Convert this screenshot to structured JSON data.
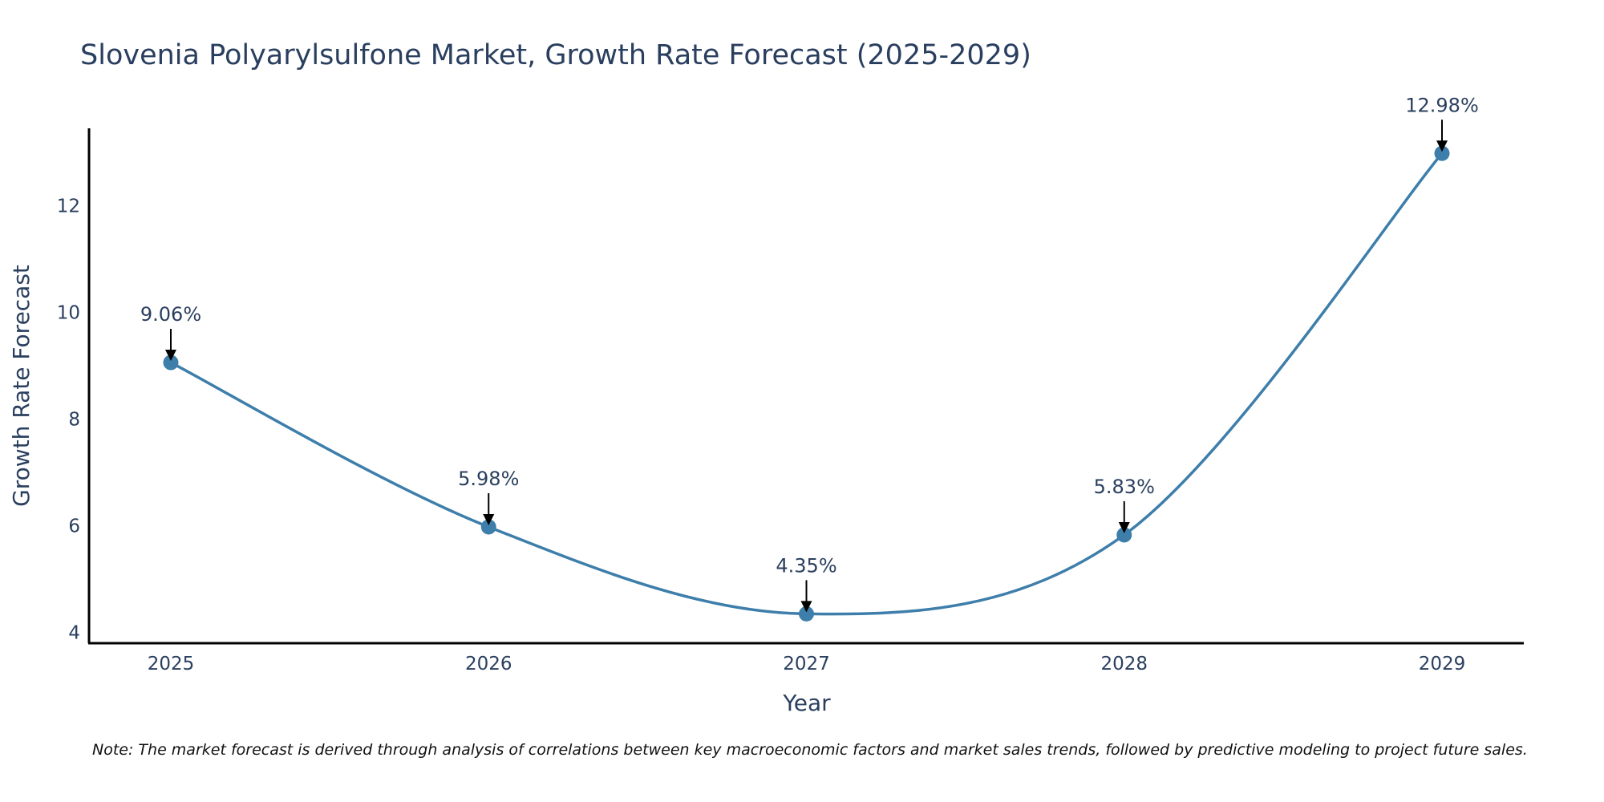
{
  "chart_data": {
    "type": "line",
    "title": "Slovenia Polyarylsulfone Market, Growth Rate Forecast (2025-2029)",
    "xlabel": "Year",
    "ylabel": "Growth Rate Forecast",
    "categories": [
      "2025",
      "2026",
      "2027",
      "2028",
      "2029"
    ],
    "values": [
      9.06,
      5.98,
      4.35,
      5.83,
      12.98
    ],
    "data_labels": [
      "9.06%",
      "5.98%",
      "4.35%",
      "5.83%",
      "12.98%"
    ],
    "y_ticks": [
      4,
      6,
      8,
      10,
      12
    ],
    "y_tick_labels": [
      "4",
      "6",
      "8",
      "10",
      "12"
    ],
    "ylim": [
      3.8,
      13.45
    ],
    "grid": false,
    "line_shape": "spline",
    "line_color": "#3d7eaa",
    "marker_color": "#3d7eaa",
    "note": "Note: The market forecast is derived through analysis of correlations between key macroeconomic factors and market sales trends, followed by predictive modeling to project future sales."
  }
}
